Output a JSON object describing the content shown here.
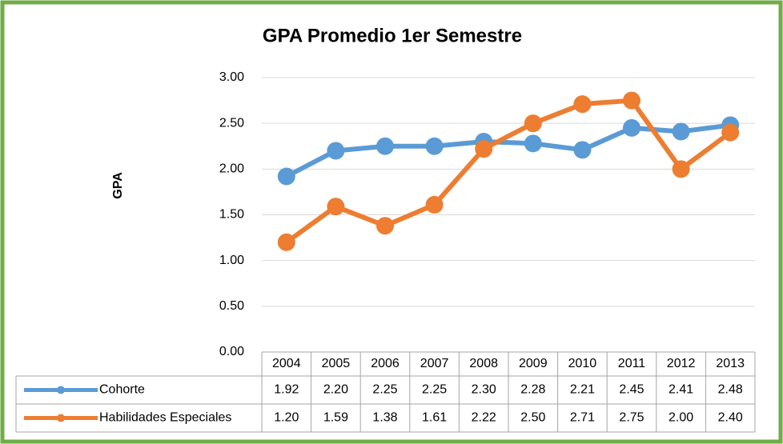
{
  "chart_data": {
    "type": "line",
    "title": "GPA Promedio 1er Semestre",
    "y_label": "GPA",
    "categories": [
      "2004",
      "2005",
      "2006",
      "2007",
      "2008",
      "2009",
      "2010",
      "2011",
      "2012",
      "2013"
    ],
    "series": [
      {
        "name": "Cohorte",
        "color": "#5b9bd5",
        "values": [
          1.92,
          2.2,
          2.25,
          2.25,
          2.3,
          2.28,
          2.21,
          2.45,
          2.41,
          2.48
        ],
        "value_labels": [
          "1.92",
          "2.20",
          "2.25",
          "2.25",
          "2.30",
          "2.28",
          "2.21",
          "2.45",
          "2.41",
          "2.48"
        ]
      },
      {
        "name": "Habilidades Especiales",
        "color": "#ed7d31",
        "values": [
          1.2,
          1.59,
          1.38,
          1.61,
          2.22,
          2.5,
          2.71,
          2.75,
          2.0,
          2.4
        ],
        "value_labels": [
          "1.20",
          "1.59",
          "1.38",
          "1.61",
          "2.22",
          "2.50",
          "2.71",
          "2.75",
          "2.00",
          "2.40"
        ]
      }
    ],
    "ylim": [
      0,
      3
    ],
    "yticks": [
      {
        "value": 0,
        "label": "0.00"
      },
      {
        "value": 0.5,
        "label": "0.50"
      },
      {
        "value": 1,
        "label": "1.00"
      },
      {
        "value": 1.5,
        "label": "1.50"
      },
      {
        "value": 2,
        "label": "2.00"
      },
      {
        "value": 2.5,
        "label": "2.50"
      },
      {
        "value": 3,
        "label": "3.00"
      }
    ],
    "grid": true,
    "data_table": true
  }
}
